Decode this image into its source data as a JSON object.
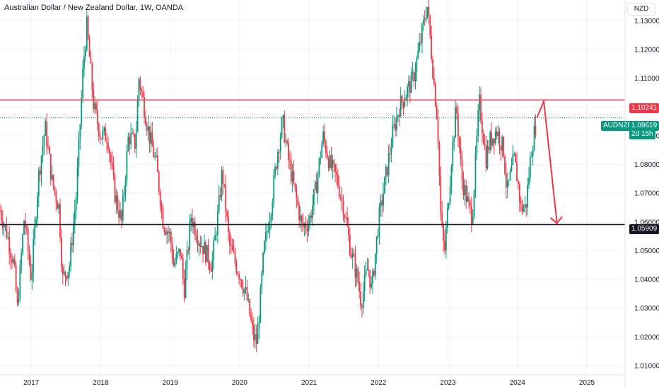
{
  "header": {
    "title": "Australian Dollar / New Zealand Dollar, 1W, OANDA",
    "currency": "NZD"
  },
  "chart_data": {
    "type": "candlestick",
    "symbol": "AUDNZD",
    "x_ticks": [
      "2017",
      "2018",
      "2019",
      "2020",
      "2021",
      "2022",
      "2023",
      "2024",
      "2025"
    ],
    "y_ticks": [
      "1.13000",
      "1.12000",
      "1.11000",
      "1.10000",
      "1.09000",
      "1.08000",
      "1.07000",
      "1.06000",
      "1.05000",
      "1.04000",
      "1.03000",
      "1.02000",
      "1.01000"
    ],
    "ylim": [
      1.0068,
      1.1372
    ],
    "xlim": [
      2016.55,
      2025.55
    ],
    "resistance": {
      "label": "1.10241",
      "value": 1.10241,
      "color": "#f23645"
    },
    "support": {
      "label": "1.05909",
      "value": 1.05909,
      "color": "#131722"
    },
    "last_price": {
      "symbol": "AUDNZD",
      "label": "1.09619",
      "countdown": "2d 15h",
      "value": 1.09619,
      "color": "#089981"
    },
    "projection": [
      [
        2024.28,
        1.0962
      ],
      [
        2024.38,
        1.102
      ],
      [
        2024.57,
        1.0595
      ]
    ],
    "price_path": [
      [
        2016.55,
        1.064
      ],
      [
        2016.65,
        1.056
      ],
      [
        2016.75,
        1.045
      ],
      [
        2016.8,
        1.03
      ],
      [
        2016.9,
        1.062
      ],
      [
        2017.0,
        1.04
      ],
      [
        2017.1,
        1.075
      ],
      [
        2017.2,
        1.093
      ],
      [
        2017.3,
        1.074
      ],
      [
        2017.4,
        1.065
      ],
      [
        2017.45,
        1.04
      ],
      [
        2017.55,
        1.045
      ],
      [
        2017.65,
        1.07
      ],
      [
        2017.75,
        1.115
      ],
      [
        2017.8,
        1.128
      ],
      [
        2017.9,
        1.1
      ],
      [
        2018.0,
        1.09
      ],
      [
        2018.1,
        1.09
      ],
      [
        2018.2,
        1.07
      ],
      [
        2018.3,
        1.06
      ],
      [
        2018.4,
        1.09
      ],
      [
        2018.5,
        1.087
      ],
      [
        2018.55,
        1.11
      ],
      [
        2018.7,
        1.09
      ],
      [
        2018.8,
        1.08
      ],
      [
        2018.9,
        1.06
      ],
      [
        2019.0,
        1.055
      ],
      [
        2019.05,
        1.045
      ],
      [
        2019.15,
        1.05
      ],
      [
        2019.2,
        1.036
      ],
      [
        2019.3,
        1.062
      ],
      [
        2019.4,
        1.055
      ],
      [
        2019.5,
        1.05
      ],
      [
        2019.6,
        1.045
      ],
      [
        2019.7,
        1.065
      ],
      [
        2019.75,
        1.078
      ],
      [
        2019.85,
        1.052
      ],
      [
        2019.95,
        1.045
      ],
      [
        2020.0,
        1.042
      ],
      [
        2020.1,
        1.034
      ],
      [
        2020.2,
        1.02
      ],
      [
        2020.25,
        1.018
      ],
      [
        2020.35,
        1.05
      ],
      [
        2020.45,
        1.065
      ],
      [
        2020.55,
        1.085
      ],
      [
        2020.62,
        1.095
      ],
      [
        2020.7,
        1.082
      ],
      [
        2020.8,
        1.07
      ],
      [
        2020.9,
        1.058
      ],
      [
        2021.0,
        1.06
      ],
      [
        2021.1,
        1.072
      ],
      [
        2021.2,
        1.09
      ],
      [
        2021.3,
        1.08
      ],
      [
        2021.4,
        1.075
      ],
      [
        2021.5,
        1.065
      ],
      [
        2021.6,
        1.05
      ],
      [
        2021.7,
        1.04
      ],
      [
        2021.75,
        1.032
      ],
      [
        2021.85,
        1.045
      ],
      [
        2021.9,
        1.036
      ],
      [
        2022.0,
        1.06
      ],
      [
        2022.1,
        1.075
      ],
      [
        2022.2,
        1.09
      ],
      [
        2022.3,
        1.1
      ],
      [
        2022.4,
        1.105
      ],
      [
        2022.5,
        1.11
      ],
      [
        2022.6,
        1.122
      ],
      [
        2022.7,
        1.136
      ],
      [
        2022.8,
        1.108
      ],
      [
        2022.85,
        1.095
      ],
      [
        2022.9,
        1.06
      ],
      [
        2022.95,
        1.049
      ],
      [
        2023.05,
        1.082
      ],
      [
        2023.12,
        1.1
      ],
      [
        2023.2,
        1.075
      ],
      [
        2023.3,
        1.065
      ],
      [
        2023.35,
        1.062
      ],
      [
        2023.45,
        1.102
      ],
      [
        2023.55,
        1.082
      ],
      [
        2023.6,
        1.088
      ],
      [
        2023.7,
        1.092
      ],
      [
        2023.8,
        1.085
      ],
      [
        2023.85,
        1.07
      ],
      [
        2023.95,
        1.082
      ],
      [
        2024.0,
        1.075
      ],
      [
        2024.05,
        1.065
      ],
      [
        2024.12,
        1.065
      ],
      [
        2024.2,
        1.085
      ],
      [
        2024.28,
        1.0962
      ]
    ]
  }
}
